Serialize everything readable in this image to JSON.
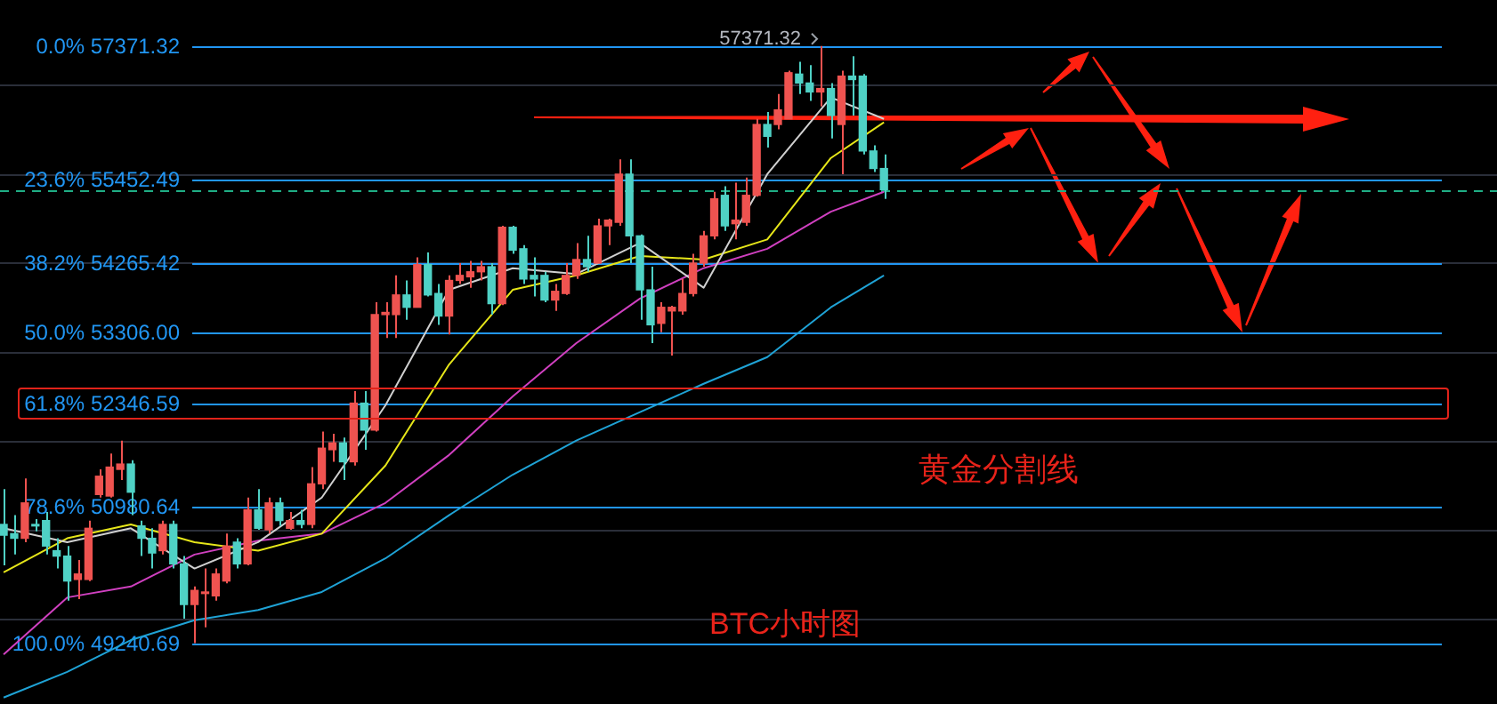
{
  "chart_data": {
    "type": "candlestick",
    "categories": [
      null,
      null,
      null,
      null,
      null,
      null,
      null,
      null,
      null,
      null,
      null,
      null,
      null,
      null,
      null,
      null,
      null,
      null,
      null,
      null,
      null,
      null,
      null,
      null,
      null,
      null,
      null,
      null,
      null,
      null,
      null,
      null,
      null,
      null,
      null,
      null,
      null,
      null,
      null,
      null,
      null,
      null,
      null,
      null,
      null,
      null,
      null,
      null,
      null,
      null,
      null,
      null,
      null,
      null,
      null,
      null,
      null,
      null,
      null,
      null,
      null,
      null,
      null,
      null,
      null,
      null,
      null,
      null,
      null,
      null,
      null,
      null,
      null,
      null,
      null,
      null,
      null,
      null,
      null,
      null,
      null,
      null,
      null,
      null
    ],
    "ohlc": [
      [
        50760,
        51220,
        50230,
        50620
      ],
      [
        50640,
        50880,
        50370,
        50580
      ],
      [
        50580,
        51360,
        50530,
        51040
      ],
      [
        50760,
        50830,
        50670,
        50740
      ],
      [
        50810,
        50920,
        50370,
        50480
      ],
      [
        50420,
        50580,
        50190,
        50350
      ],
      [
        50350,
        50480,
        49780,
        50030
      ],
      [
        50050,
        50300,
        49800,
        50120
      ],
      [
        50050,
        50810,
        50030,
        50710
      ],
      [
        51150,
        51480,
        51110,
        51390
      ],
      [
        51130,
        51690,
        51110,
        51510
      ],
      [
        51480,
        51860,
        51340,
        51550
      ],
      [
        51550,
        51600,
        50880,
        51180
      ],
      [
        50740,
        50810,
        50350,
        50580
      ],
      [
        50580,
        50710,
        50190,
        50390
      ],
      [
        50420,
        50810,
        50370,
        50760
      ],
      [
        50760,
        50810,
        50190,
        50250
      ],
      [
        50250,
        50350,
        49550,
        49730
      ],
      [
        49730,
        49960,
        49240.69,
        49910
      ],
      [
        49870,
        50190,
        49440,
        49890
      ],
      [
        49840,
        50190,
        49780,
        50120
      ],
      [
        50030,
        50640,
        50000,
        50480
      ],
      [
        50530,
        50580,
        50190,
        50250
      ],
      [
        50250,
        51110,
        50230,
        50950
      ],
      [
        50950,
        51220,
        50690,
        50710
      ],
      [
        50690,
        51110,
        50640,
        51040
      ],
      [
        51040,
        51110,
        50740,
        50810
      ],
      [
        50710,
        50920,
        50690,
        50810
      ],
      [
        50810,
        50950,
        50710,
        50760
      ],
      [
        50760,
        51510,
        50710,
        51290
      ],
      [
        51290,
        51980,
        51220,
        51760
      ],
      [
        51740,
        51950,
        51580,
        51830
      ],
      [
        51830,
        51900,
        51340,
        51580
      ],
      [
        51580,
        52520,
        51530,
        52360
      ],
      [
        52360,
        52520,
        51740,
        52000
      ],
      [
        52000,
        53730,
        51980,
        53560
      ],
      [
        53560,
        53730,
        53240,
        53590
      ],
      [
        53560,
        54100,
        53240,
        53830
      ],
      [
        53830,
        54030,
        53490,
        53660
      ],
      [
        53660,
        54350,
        53660,
        54250
      ],
      [
        54250,
        54420,
        53810,
        53830
      ],
      [
        53850,
        53980,
        53420,
        53540
      ],
      [
        53540,
        54100,
        53290,
        54030
      ],
      [
        54030,
        54270,
        53980,
        54100
      ],
      [
        54080,
        54300,
        53930,
        54150
      ],
      [
        54150,
        54300,
        54030,
        54220
      ],
      [
        54220,
        54270,
        53560,
        53710
      ],
      [
        53710,
        54790,
        53690,
        54770
      ],
      [
        54770,
        54790,
        54400,
        54450
      ],
      [
        54470,
        54520,
        53980,
        54050
      ],
      [
        54100,
        54350,
        53810,
        54050
      ],
      [
        54100,
        54150,
        53730,
        53760
      ],
      [
        53760,
        53980,
        53610,
        53880
      ],
      [
        53850,
        54270,
        53830,
        54100
      ],
      [
        54100,
        54550,
        54050,
        54320
      ],
      [
        54320,
        54650,
        54150,
        54220
      ],
      [
        54270,
        54890,
        54270,
        54790
      ],
      [
        54790,
        54890,
        54520,
        54870
      ],
      [
        54840,
        55730,
        54790,
        55520
      ],
      [
        55520,
        55730,
        54270,
        54650
      ],
      [
        54650,
        54670,
        53490,
        53900
      ],
      [
        53900,
        54220,
        53170,
        53420
      ],
      [
        53440,
        53730,
        53320,
        53660
      ],
      [
        53610,
        53680,
        53000,
        53660
      ],
      [
        53610,
        54050,
        53560,
        53850
      ],
      [
        53850,
        54400,
        53810,
        54270
      ],
      [
        54270,
        54720,
        54220,
        54650
      ],
      [
        54650,
        55270,
        54600,
        55170
      ],
      [
        55220,
        55350,
        54720,
        54790
      ],
      [
        54820,
        55400,
        54600,
        54870
      ],
      [
        54840,
        55470,
        54790,
        55220
      ],
      [
        55220,
        56310,
        55200,
        56230
      ],
      [
        56230,
        56410,
        55900,
        56060
      ],
      [
        56230,
        56670,
        56160,
        56440
      ],
      [
        56310,
        57010,
        56310,
        56980
      ],
      [
        56960,
        57140,
        56670,
        56830
      ],
      [
        56830,
        57090,
        56570,
        56700
      ],
      [
        56700,
        57371.32,
        56490,
        56750
      ],
      [
        56750,
        56830,
        56030,
        56360
      ],
      [
        56230,
        57010,
        55520,
        56930
      ],
      [
        56930,
        57220,
        56360,
        56880
      ],
      [
        56930,
        56960,
        55800,
        55850
      ],
      [
        55850,
        55930,
        55550,
        55600
      ],
      [
        55600,
        55800,
        55170,
        55300
      ]
    ],
    "series": [
      {
        "type": "line",
        "color": "#d0d0d0",
        "values": [
          50710,
          null,
          null,
          null,
          null,
          null,
          50530,
          null,
          null,
          null,
          null,
          null,
          50710,
          null,
          null,
          null,
          null,
          null,
          50190,
          null,
          null,
          null,
          null,
          null,
          50530,
          null,
          null,
          null,
          null,
          null,
          51110,
          null,
          null,
          null,
          null,
          null,
          52330,
          null,
          null,
          null,
          null,
          null,
          53900,
          null,
          null,
          null,
          null,
          null,
          54200,
          null,
          null,
          null,
          null,
          null,
          54120,
          null,
          null,
          null,
          null,
          null,
          54550,
          null,
          null,
          null,
          null,
          null,
          53930,
          null,
          null,
          null,
          null,
          null,
          55520,
          null,
          null,
          null,
          null,
          null,
          56620,
          null,
          null,
          null,
          null,
          56310
        ]
      },
      {
        "type": "line",
        "color": "#e6e619",
        "values": [
          50140,
          null,
          null,
          null,
          null,
          null,
          50580,
          null,
          null,
          null,
          null,
          null,
          50760,
          null,
          null,
          null,
          null,
          null,
          50530,
          null,
          null,
          null,
          null,
          null,
          50420,
          null,
          null,
          null,
          null,
          null,
          50640,
          null,
          null,
          null,
          null,
          null,
          51530,
          null,
          null,
          null,
          null,
          null,
          52880,
          null,
          null,
          null,
          null,
          null,
          53900,
          null,
          null,
          null,
          null,
          null,
          54100,
          null,
          null,
          null,
          null,
          null,
          54370,
          null,
          null,
          null,
          null,
          null,
          54320,
          null,
          null,
          null,
          null,
          null,
          54600,
          null,
          null,
          null,
          null,
          null,
          55750,
          null,
          null,
          null,
          null,
          56260
        ]
      },
      {
        "type": "line",
        "color": "#d040c0",
        "values": [
          49100,
          null,
          null,
          null,
          null,
          null,
          49820,
          null,
          null,
          null,
          null,
          null,
          49960,
          null,
          null,
          null,
          null,
          null,
          50370,
          null,
          null,
          null,
          null,
          null,
          50550,
          null,
          null,
          null,
          null,
          null,
          50640,
          null,
          null,
          null,
          null,
          null,
          51040,
          null,
          null,
          null,
          null,
          null,
          51670,
          null,
          null,
          null,
          null,
          null,
          52450,
          null,
          null,
          null,
          null,
          null,
          53170,
          null,
          null,
          null,
          null,
          null,
          53780,
          null,
          null,
          null,
          null,
          null,
          54200,
          null,
          null,
          null,
          null,
          null,
          54470,
          null,
          null,
          null,
          null,
          null,
          54990,
          null,
          null,
          null,
          null,
          55270
        ]
      },
      {
        "type": "line",
        "color": "#1fa3d6",
        "values": [
          48560,
          null,
          null,
          null,
          null,
          null,
          48880,
          null,
          null,
          null,
          null,
          null,
          49280,
          null,
          null,
          null,
          null,
          null,
          49530,
          null,
          null,
          null,
          null,
          null,
          49660,
          null,
          null,
          null,
          null,
          null,
          49890,
          null,
          null,
          null,
          null,
          null,
          50320,
          null,
          null,
          null,
          null,
          null,
          50880,
          null,
          null,
          null,
          null,
          null,
          51410,
          null,
          null,
          null,
          null,
          null,
          51860,
          null,
          null,
          null,
          null,
          null,
          52240,
          null,
          null,
          null,
          null,
          null,
          52620,
          null,
          null,
          null,
          null,
          null,
          52980,
          null,
          null,
          null,
          null,
          null,
          53660,
          null,
          null,
          null,
          null,
          54100
        ]
      }
    ],
    "ylim": [
      48480,
      58050
    ],
    "yticks": [
      {
        "value": 56790,
        "label": null
      },
      {
        "value": 55510,
        "label": null
      },
      {
        "value": 54270,
        "label": null
      },
      {
        "value": 53040,
        "label": null
      },
      {
        "value": 51850,
        "label": null
      },
      {
        "value": 50680,
        "label": null
      },
      {
        "value": 49540,
        "label": null
      }
    ],
    "log": "y",
    "grid": "y",
    "marker": "none",
    "line_style": "solid",
    "ref_lines": [
      {
        "axis": "y",
        "value": 57371.32,
        "label": "0.0% 57371.32",
        "color": "#2196f3"
      },
      {
        "axis": "y",
        "value": 55452.49,
        "label": "23.6% 55452.49",
        "color": "#2196f3"
      },
      {
        "axis": "y",
        "value": 54265.42,
        "label": "38.2% 54265.42",
        "color": "#2196f3"
      },
      {
        "axis": "y",
        "value": 53306.0,
        "label": "50.0% 53306.00",
        "color": "#2196f3"
      },
      {
        "axis": "y",
        "value": 52346.59,
        "label": "61.8% 52346.59",
        "color": "#2196f3"
      },
      {
        "axis": "y",
        "value": 50980.64,
        "label": "78.6% 50980.64",
        "color": "#2196f3"
      },
      {
        "axis": "y",
        "value": 49240.69,
        "label": "100.0% 49240.69",
        "color": "#2196f3"
      },
      {
        "axis": "y",
        "value": 55300,
        "color": "#1fae85",
        "line_style": "dashed"
      }
    ],
    "annotations": [
      {
        "text": "57371.32",
        "y": 57371.32
      },
      "黄金分割线",
      "BTC小时图"
    ]
  }
}
